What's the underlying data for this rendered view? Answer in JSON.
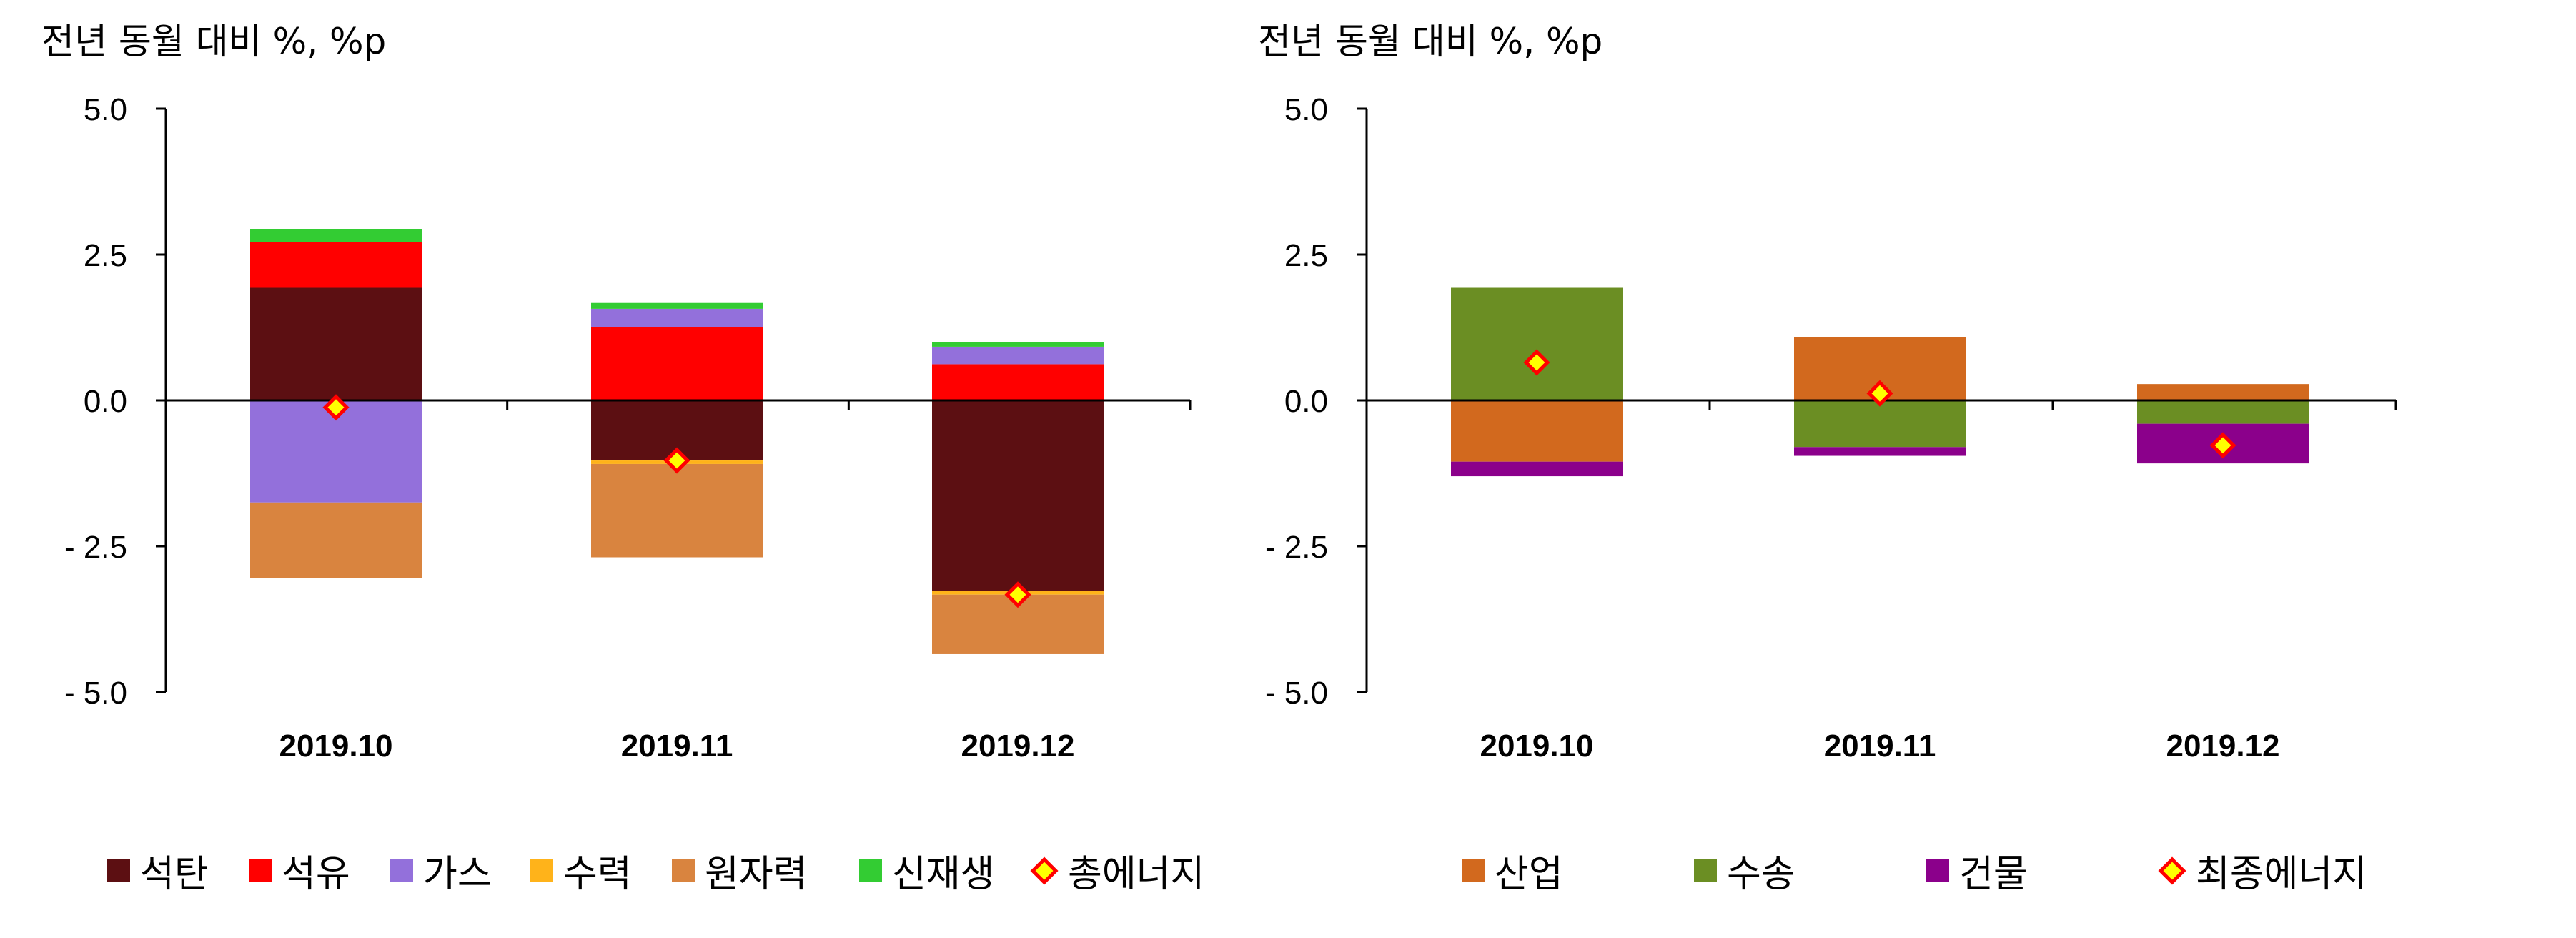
{
  "charts": [
    {
      "id": "left",
      "legend_labels": [
        "석탄",
        "석유",
        "가스",
        "수력",
        "원자력",
        "신재생",
        "총에너지"
      ],
      "chart_data": {
        "type": "bar",
        "subtype": "stacked",
        "ylabel": "전년 동월 대비 %, %p",
        "ylim": [
          -5.0,
          5.0
        ],
        "yticks": [
          "5.0",
          "2.5",
          "0.0",
          "- 2.5",
          "- 5.0"
        ],
        "categories": [
          "2019.10",
          "2019.11",
          "2019.12"
        ],
        "series": [
          {
            "name": "석탄",
            "color": "#5c0f12",
            "values": [
              1.93,
              -1.03,
              -3.27
            ]
          },
          {
            "name": "석유",
            "color": "#ff0000",
            "values": [
              0.78,
              1.25,
              0.62
            ]
          },
          {
            "name": "가스",
            "color": "#9370db",
            "values": [
              -1.75,
              0.32,
              0.3
            ]
          },
          {
            "name": "수력",
            "color": "#ffb31a",
            "values": [
              0.0,
              -0.06,
              -0.06
            ]
          },
          {
            "name": "원자력",
            "color": "#d9843f",
            "values": [
              -1.3,
              -1.6,
              -1.02
            ]
          },
          {
            "name": "신재생",
            "color": "#33cc33",
            "values": [
              0.22,
              0.1,
              0.08
            ]
          }
        ],
        "markers": {
          "name": "총에너지",
          "values": [
            -0.12,
            -1.03,
            -3.33
          ],
          "fill": "#ffff00",
          "stroke": "#ff0000"
        },
        "grid": false,
        "legend_position": "bottom"
      }
    },
    {
      "id": "right",
      "legend_labels": [
        "산업",
        "수송",
        "건물",
        "최종에너지"
      ],
      "chart_data": {
        "type": "bar",
        "subtype": "stacked",
        "ylabel": "전년 동월 대비 %, %p",
        "ylim": [
          -5.0,
          5.0
        ],
        "yticks": [
          "5.0",
          "2.5",
          "0.0",
          "- 2.5",
          "- 5.0"
        ],
        "categories": [
          "2019.10",
          "2019.11",
          "2019.12"
        ],
        "series": [
          {
            "name": "산업",
            "color": "#d2691e",
            "values": [
              -1.05,
              1.08,
              0.28
            ]
          },
          {
            "name": "수송",
            "color": "#6b8e23",
            "values": [
              1.93,
              -0.8,
              -0.4
            ]
          },
          {
            "name": "건물",
            "color": "#8b008b",
            "values": [
              -0.25,
              -0.15,
              -0.68
            ]
          }
        ],
        "markers": {
          "name": "최종에너지",
          "values": [
            0.65,
            0.12,
            -0.77
          ],
          "fill": "#ffff00",
          "stroke": "#ff0000"
        },
        "grid": false,
        "legend_position": "bottom"
      }
    }
  ]
}
